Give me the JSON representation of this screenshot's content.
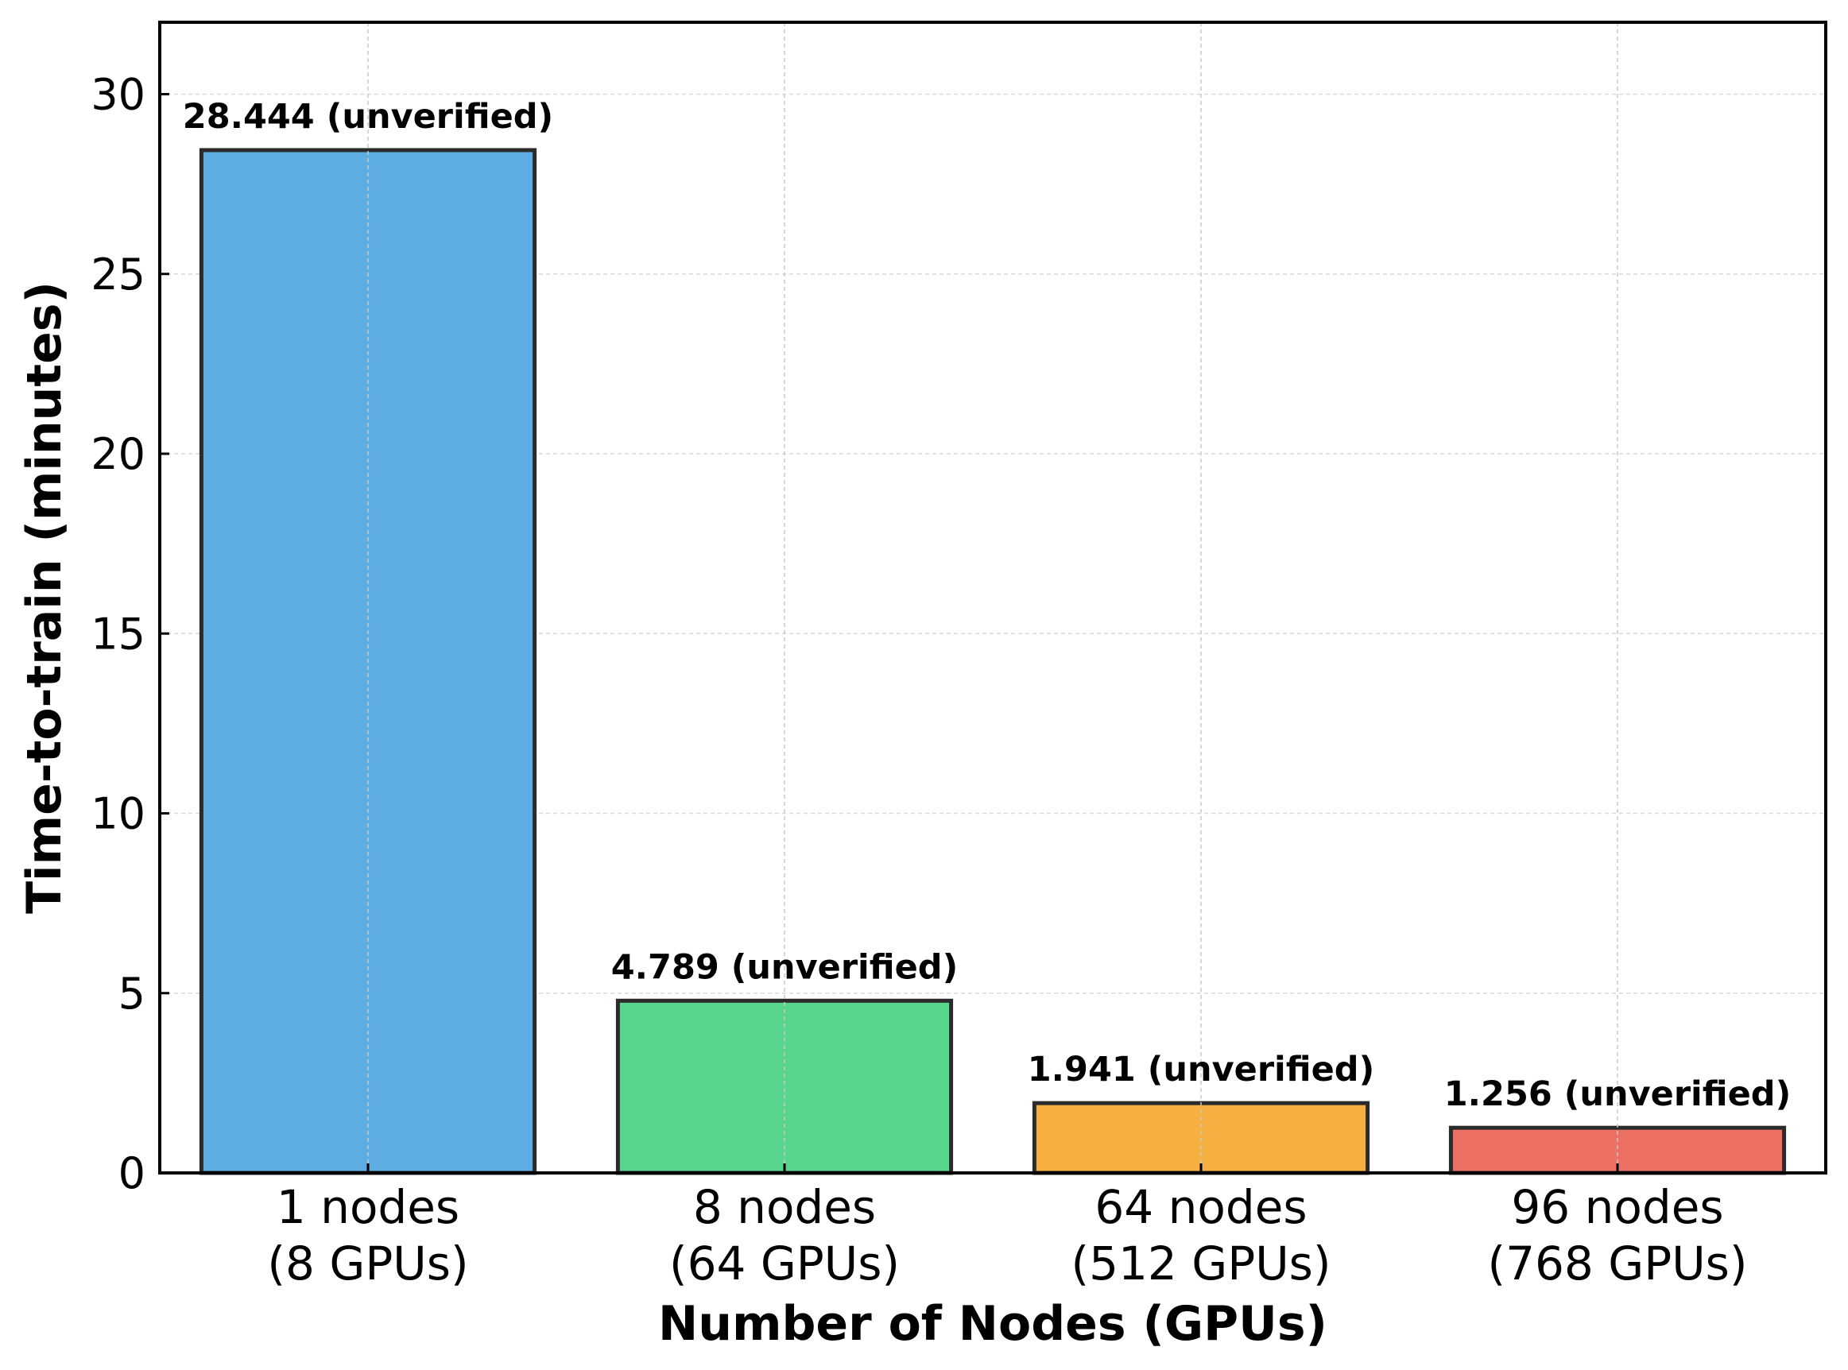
{
  "chart_data": {
    "type": "bar",
    "title": "",
    "xlabel": "Number of Nodes (GPUs)",
    "ylabel": "Time-to-train (minutes)",
    "ylim": [
      0,
      32
    ],
    "yticks": [
      0,
      5,
      10,
      15,
      20,
      25,
      30
    ],
    "grid": true,
    "categories": [
      {
        "line1": "1 nodes",
        "line2": "(8 GPUs)"
      },
      {
        "line1": "8 nodes",
        "line2": "(64 GPUs)"
      },
      {
        "line1": "64 nodes",
        "line2": "(512 GPUs)"
      },
      {
        "line1": "96 nodes",
        "line2": "(768 GPUs)"
      }
    ],
    "values": [
      28.444,
      4.789,
      1.941,
      1.256
    ],
    "data_labels": [
      "28.444 (unverified)",
      "4.789 (unverified)",
      "1.941 (unverified)",
      "1.256 (unverified)"
    ],
    "colors": [
      "#5DADE2",
      "#58D68D",
      "#F5B041",
      "#EC7063"
    ],
    "edge_color": "#2b2b2b"
  }
}
